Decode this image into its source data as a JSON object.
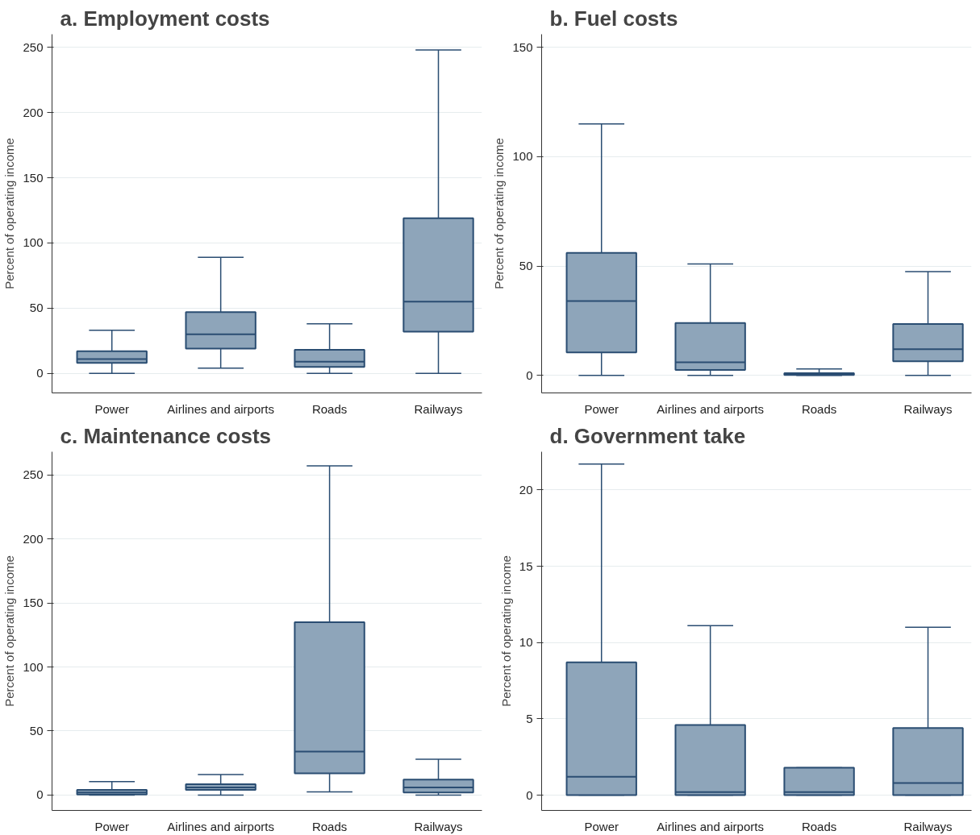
{
  "chart_data": [
    {
      "type": "box",
      "title": "a.   Employment costs",
      "ylabel": "Percent of operating income",
      "categories": [
        "Power",
        "Airlines and airports",
        "Roads",
        "Railways"
      ],
      "color": "#8ea5ba",
      "grid": "y",
      "ylim": [
        -15,
        260
      ],
      "yticks": [
        0,
        50,
        100,
        150,
        200,
        250
      ],
      "boxes": [
        {
          "low": 0,
          "q1": 8,
          "median": 11,
          "q3": 17,
          "high": 33
        },
        {
          "low": 4,
          "q1": 19,
          "median": 30,
          "q3": 47,
          "high": 89
        },
        {
          "low": 0,
          "q1": 5,
          "median": 9,
          "q3": 18,
          "high": 38
        },
        {
          "low": 0,
          "q1": 32,
          "median": 55,
          "q3": 119,
          "high": 248
        }
      ]
    },
    {
      "type": "box",
      "title": "b.   Fuel costs",
      "ylabel": "Percent of operating income",
      "categories": [
        "Power",
        "Airlines and airports",
        "Roads",
        "Railways"
      ],
      "color": "#8ea5ba",
      "grid": "y",
      "ylim": [
        -8,
        156
      ],
      "yticks": [
        0,
        50,
        100,
        150
      ],
      "boxes": [
        {
          "low": 0,
          "q1": 10.5,
          "median": 34,
          "q3": 56,
          "high": 115
        },
        {
          "low": 0,
          "q1": 2.5,
          "median": 6,
          "q3": 24,
          "high": 51
        },
        {
          "low": 0,
          "q1": 0.2,
          "median": 0.5,
          "q3": 1,
          "high": 3
        },
        {
          "low": 0,
          "q1": 6.5,
          "median": 12,
          "q3": 23.5,
          "high": 47.5
        }
      ]
    },
    {
      "type": "box",
      "title": "c.   Maintenance costs",
      "ylabel": "Percent of operating income",
      "categories": [
        "Power",
        "Airlines and airports",
        "Roads",
        "Railways"
      ],
      "color": "#8ea5ba",
      "grid": "y",
      "ylim": [
        -12,
        268
      ],
      "yticks": [
        0,
        50,
        100,
        150,
        200,
        250
      ],
      "boxes": [
        {
          "low": 0,
          "q1": 0.5,
          "median": 2,
          "q3": 4,
          "high": 10.5
        },
        {
          "low": 0,
          "q1": 4,
          "median": 6,
          "q3": 8.5,
          "high": 16
        },
        {
          "low": 2.5,
          "q1": 17,
          "median": 34,
          "q3": 135,
          "high": 257
        },
        {
          "low": 0,
          "q1": 2,
          "median": 6,
          "q3": 12,
          "high": 28
        }
      ]
    },
    {
      "type": "box",
      "title": "d.   Government take",
      "ylabel": "Percent of operating income",
      "categories": [
        "Power",
        "Airlines and airports",
        "Roads",
        "Railways"
      ],
      "color": "#8ea5ba",
      "grid": "y",
      "ylim": [
        -1,
        22.5
      ],
      "yticks": [
        0,
        5,
        10,
        15,
        20
      ],
      "boxes": [
        {
          "low": 0,
          "q1": 0,
          "median": 1.2,
          "q3": 8.7,
          "high": 21.7
        },
        {
          "low": 0,
          "q1": 0,
          "median": 0.2,
          "q3": 4.6,
          "high": 11.1
        },
        {
          "low": 0,
          "q1": 0,
          "median": 0.2,
          "q3": 1.8,
          "high": 1.8
        },
        {
          "low": 0,
          "q1": 0,
          "median": 0.8,
          "q3": 4.4,
          "high": 11.0
        }
      ]
    }
  ]
}
